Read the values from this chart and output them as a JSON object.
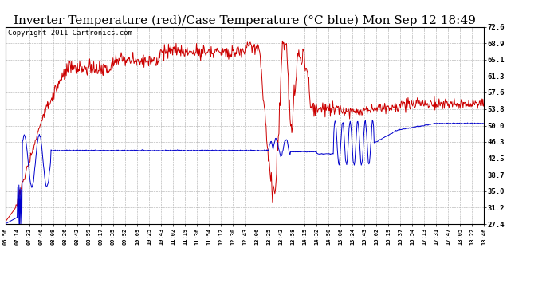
{
  "title": "Inverter Temperature (red)/Case Temperature (°C blue) Mon Sep 12 18:49",
  "copyright": "Copyright 2011 Cartronics.com",
  "yticks": [
    27.4,
    31.2,
    35.0,
    38.7,
    42.5,
    46.3,
    50.0,
    53.8,
    57.6,
    61.3,
    65.1,
    68.9,
    72.6
  ],
  "ytick_labels": [
    "27.4",
    "31.2",
    "35.0",
    "38.7",
    "42.5",
    "46.3",
    "50.0",
    "53.8",
    "57.6",
    "61.3",
    "65.1",
    "68.9",
    "72.6"
  ],
  "ylim": [
    27.4,
    72.6
  ],
  "xtick_labels": [
    "06:56",
    "07:14",
    "07:32",
    "07:46",
    "08:09",
    "08:26",
    "08:42",
    "08:59",
    "09:17",
    "09:35",
    "09:52",
    "10:09",
    "10:25",
    "10:43",
    "11:02",
    "11:19",
    "11:36",
    "11:54",
    "12:12",
    "12:30",
    "12:43",
    "13:06",
    "13:25",
    "13:42",
    "13:58",
    "14:15",
    "14:32",
    "14:50",
    "15:06",
    "15:24",
    "15:43",
    "16:02",
    "16:19",
    "16:37",
    "16:54",
    "17:13",
    "17:31",
    "17:47",
    "18:05",
    "18:22",
    "18:46"
  ],
  "bg_color": "#ffffff",
  "plot_bg": "#ffffff",
  "grid_color": "#aaaaaa",
  "red_color": "#cc0000",
  "blue_color": "#0000cc",
  "title_fontsize": 11,
  "copyright_fontsize": 6.5,
  "figsize": [
    6.9,
    3.75
  ],
  "dpi": 100
}
